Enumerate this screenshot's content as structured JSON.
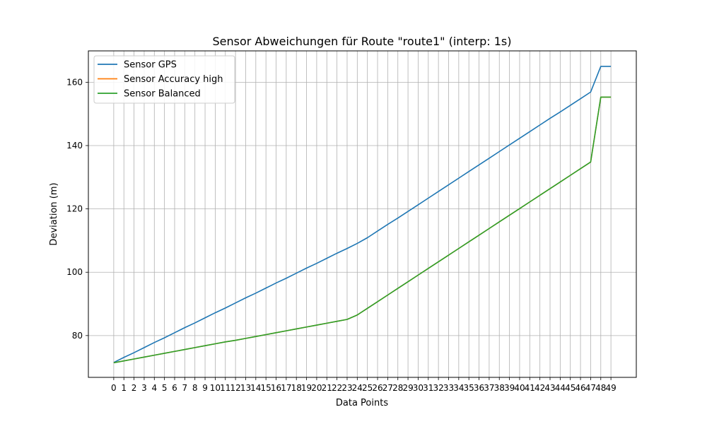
{
  "chart_data": {
    "type": "line",
    "title": "Sensor Abweichungen für Route \"route1\" (interp: 1s)",
    "xlabel": "Data Points",
    "ylabel": "Deviation (m)",
    "xlim": [
      -2.5,
      51.5
    ],
    "ylim": [
      66.8,
      169.9
    ],
    "x": [
      0,
      1,
      2,
      3,
      4,
      5,
      6,
      7,
      8,
      9,
      10,
      11,
      12,
      13,
      14,
      15,
      16,
      17,
      18,
      19,
      20,
      21,
      22,
      23,
      24,
      25,
      26,
      27,
      28,
      29,
      30,
      31,
      32,
      33,
      34,
      35,
      36,
      37,
      38,
      39,
      40,
      41,
      42,
      43,
      44,
      45,
      46,
      47,
      48,
      49
    ],
    "x_tick_labels": [
      "0",
      "1",
      "2",
      "3",
      "4",
      "5",
      "6",
      "7",
      "8",
      "9",
      "10",
      "11",
      "12",
      "13",
      "14",
      "15",
      "16",
      "17",
      "18",
      "19",
      "20",
      "21",
      "22",
      "23",
      "24",
      "25",
      "26",
      "27",
      "28",
      "29",
      "30",
      "31",
      "32",
      "33",
      "34",
      "35",
      "36",
      "37",
      "38",
      "39",
      "40",
      "41",
      "42",
      "43",
      "44",
      "45",
      "46",
      "47",
      "48",
      "49"
    ],
    "y_ticks": [
      80,
      100,
      120,
      140,
      160
    ],
    "grid": true,
    "legend_position": "top-left",
    "series": [
      {
        "name": "Sensor GPS",
        "color": "#1f77b4",
        "values": [
          71.5,
          73.1,
          74.6,
          76.2,
          77.8,
          79.3,
          80.9,
          82.5,
          84.0,
          85.6,
          87.2,
          88.7,
          90.3,
          91.9,
          93.4,
          95.0,
          96.6,
          98.1,
          99.7,
          101.3,
          102.8,
          104.4,
          106.0,
          107.5,
          109.1,
          110.9,
          113.0,
          115.1,
          117.1,
          119.2,
          121.3,
          123.4,
          125.5,
          127.6,
          129.7,
          131.8,
          133.9,
          136.0,
          138.1,
          140.2,
          142.3,
          144.4,
          146.5,
          148.6,
          150.6,
          152.7,
          154.8,
          156.9,
          165.0,
          165.0
        ]
      },
      {
        "name": "Sensor Accuracy high",
        "color": "#ff7f0e",
        "values": [
          71.4,
          72.0,
          72.6,
          73.2,
          73.8,
          74.4,
          75.0,
          75.6,
          76.2,
          76.8,
          77.4,
          78.0,
          78.5,
          79.1,
          79.7,
          80.3,
          80.9,
          81.5,
          82.1,
          82.7,
          83.3,
          83.9,
          84.5,
          85.1,
          86.5,
          88.6,
          90.7,
          92.8,
          94.9,
          97.0,
          99.1,
          101.2,
          103.3,
          105.4,
          107.5,
          109.6,
          111.7,
          113.8,
          115.9,
          118.0,
          120.1,
          122.2,
          124.3,
          126.4,
          128.5,
          130.6,
          132.7,
          134.8,
          155.3,
          155.3
        ]
      },
      {
        "name": "Sensor Balanced",
        "color": "#2ca02c",
        "values": [
          71.4,
          72.0,
          72.6,
          73.2,
          73.8,
          74.4,
          75.0,
          75.6,
          76.2,
          76.8,
          77.4,
          78.0,
          78.5,
          79.1,
          79.7,
          80.3,
          80.9,
          81.5,
          82.1,
          82.7,
          83.3,
          83.9,
          84.5,
          85.1,
          86.5,
          88.6,
          90.7,
          92.8,
          94.9,
          97.0,
          99.1,
          101.2,
          103.3,
          105.4,
          107.5,
          109.6,
          111.7,
          113.8,
          115.9,
          118.0,
          120.1,
          122.2,
          124.3,
          126.4,
          128.5,
          130.6,
          132.7,
          134.8,
          155.3,
          155.3
        ]
      }
    ]
  }
}
